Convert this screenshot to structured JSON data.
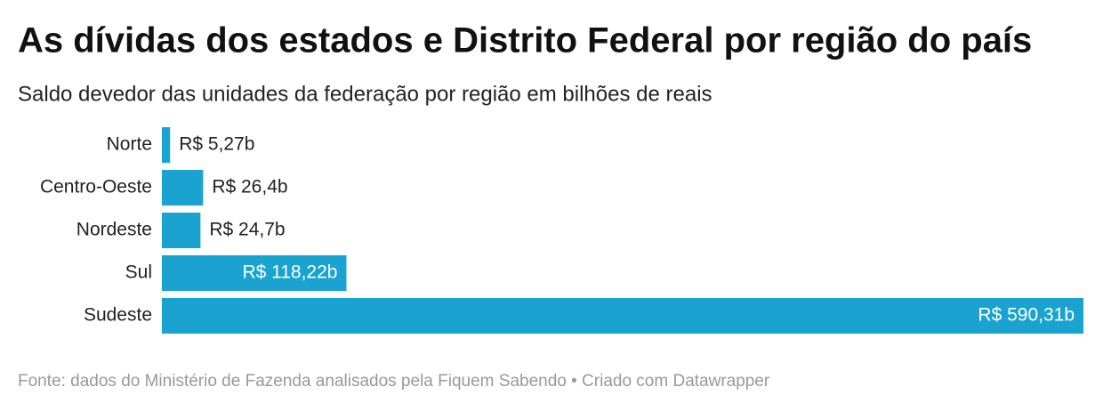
{
  "chart_data": {
    "type": "bar",
    "orientation": "horizontal",
    "title": "As dívidas dos estados e Distrito Federal por região do país",
    "subtitle": "Saldo devedor das unidades da federação por região em bilhões de reais",
    "categories": [
      "Norte",
      "Centro-Oeste",
      "Nordeste",
      "Sul",
      "Sudeste"
    ],
    "values": [
      5.27,
      26.4,
      24.7,
      118.22,
      590.31
    ],
    "value_labels": [
      "R$ 5,27b",
      "R$ 26,4b",
      "R$ 24,7b",
      "R$ 118,22b",
      "R$ 590,31b"
    ],
    "color": "#1aa3d1",
    "source": "Fonte: dados do Ministério de Fazenda analisados pela Fiquem Sabendo • Criado com Datawrapper"
  }
}
